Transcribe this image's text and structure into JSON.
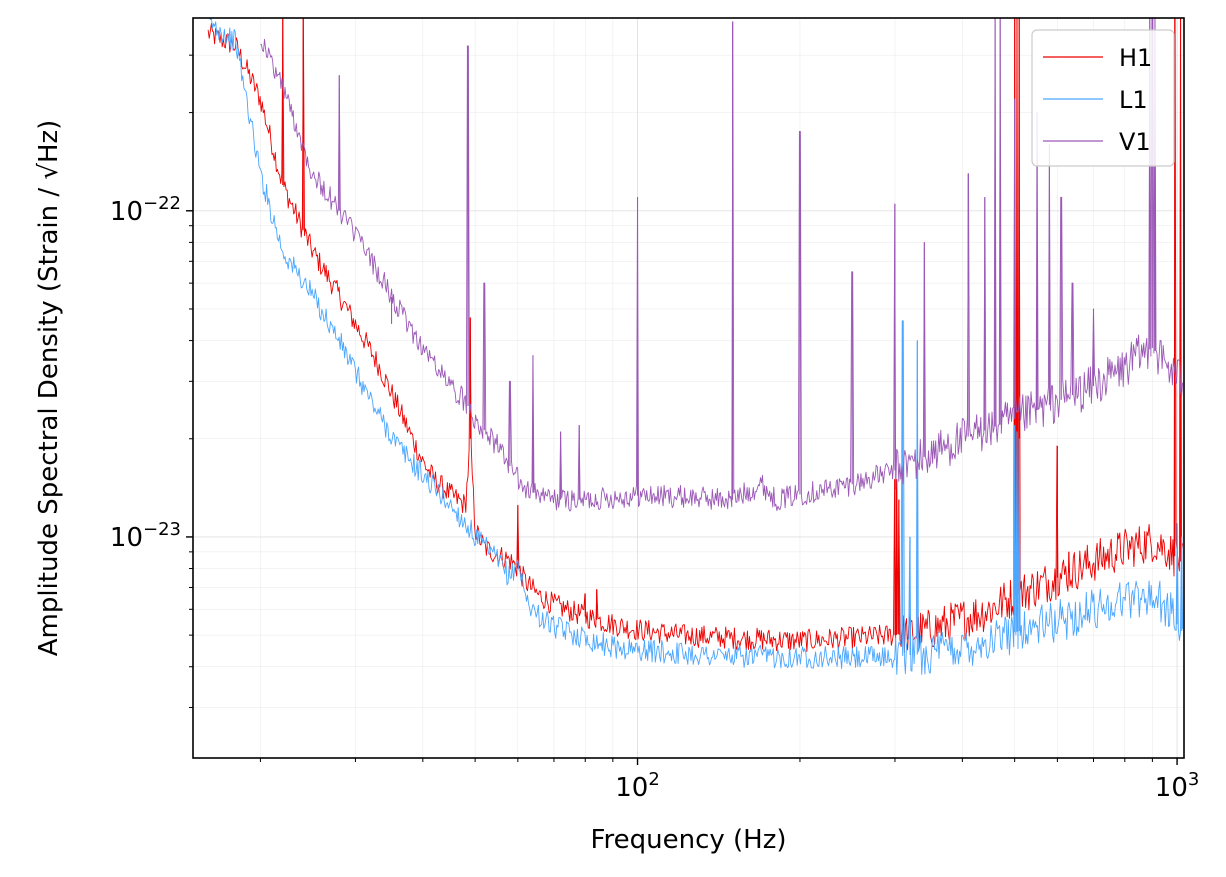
{
  "chart_data": {
    "type": "line",
    "xscale": "log",
    "yscale": "log",
    "xlabel": "Frequency (Hz)",
    "ylabel": "Amplitude Spectral Density (Strain / √Hz)",
    "xlim": [
      15,
      1030
    ],
    "ylim": [
      2.1e-24,
      3.9e-22
    ],
    "grid": true,
    "legend_position": "top-right",
    "x_ticks": [
      {
        "value": 100,
        "base": "10",
        "exp": "2"
      },
      {
        "value": 1000,
        "base": "10",
        "exp": "3"
      }
    ],
    "y_ticks": [
      {
        "value": 1e-23,
        "base": "10",
        "exp": "−23"
      },
      {
        "value": 1e-22,
        "base": "10",
        "exp": "−22"
      }
    ],
    "colors": {
      "H1": "#ee0000",
      "L1": "#4ba6ff",
      "V1": "#9b59b6"
    },
    "series": [
      {
        "name": "H1",
        "color": "#ee0000",
        "x": [
          16,
          18,
          20,
          22,
          25,
          28,
          30,
          33,
          36,
          40,
          42,
          45,
          48,
          49,
          50,
          52,
          55,
          58,
          60,
          62,
          65,
          70,
          80,
          90,
          100,
          120,
          150,
          200,
          250,
          300,
          350,
          400,
          450,
          500,
          600,
          700,
          800,
          900,
          950,
          1000,
          1024
        ],
        "y": [
          3.5e-22,
          3.2e-22,
          2.2e-22,
          1.2e-22,
          7.5e-23,
          5.5e-23,
          4.5e-23,
          3.4e-23,
          2.5e-23,
          1.7e-23,
          1.5e-23,
          1.35e-23,
          1.25e-23,
          2e-23,
          1.05e-23,
          9.3e-24,
          8.8e-24,
          8.5e-24,
          8e-24,
          7.3e-24,
          6.7e-24,
          6.2e-24,
          5.7e-24,
          5.4e-24,
          5.2e-24,
          5e-24,
          4.9e-24,
          4.8e-24,
          4.9e-24,
          5e-24,
          5.2e-24,
          5.6e-24,
          6e-24,
          6.6e-24,
          7.5e-24,
          8.4e-24,
          9.2e-24,
          9.7e-24,
          9.3e-24,
          8.6e-24,
          8.3e-24
        ],
        "lines": [
          {
            "x": 22,
            "y": 3.9e-22
          },
          {
            "x": 24,
            "y": 3.9e-22
          },
          {
            "x": 49,
            "y": 4.7e-23
          },
          {
            "x": 60,
            "y": 1.25e-23
          },
          {
            "x": 80,
            "y": 6.7e-24
          },
          {
            "x": 84,
            "y": 6.9e-24
          },
          {
            "x": 300,
            "y": 1.5e-23
          },
          {
            "x": 302,
            "y": 1.5e-23
          },
          {
            "x": 305,
            "y": 1.3e-23
          },
          {
            "x": 500,
            "y": 3.9e-22
          },
          {
            "x": 505,
            "y": 3.9e-22
          },
          {
            "x": 510,
            "y": 3.9e-22
          },
          {
            "x": 600,
            "y": 1.9e-23
          },
          {
            "x": 630,
            "y": 9e-24
          },
          {
            "x": 990,
            "y": 3.9e-22
          },
          {
            "x": 1015,
            "y": 3.9e-22
          }
        ]
      },
      {
        "name": "L1",
        "color": "#4ba6ff",
        "x": [
          16,
          18,
          20,
          22,
          25,
          28,
          30,
          33,
          36,
          40,
          45,
          48,
          50,
          55,
          58,
          60,
          62,
          65,
          70,
          80,
          90,
          100,
          120,
          150,
          200,
          250,
          300,
          350,
          400,
          450,
          500,
          600,
          700,
          800,
          900,
          950,
          1000,
          1024
        ],
        "y": [
          3.8e-22,
          3.3e-22,
          1.3e-22,
          7.5e-23,
          5.5e-23,
          4e-23,
          3.2e-23,
          2.4e-23,
          1.9e-23,
          1.55e-23,
          1.25e-23,
          1.1e-23,
          1e-23,
          8.5e-24,
          7.5e-24,
          8.5e-24,
          6.5e-24,
          5.8e-24,
          5.3e-24,
          4.9e-24,
          4.6e-24,
          4.5e-24,
          4.4e-24,
          4.3e-24,
          4.3e-24,
          4.25e-24,
          4.3e-24,
          4.4e-24,
          4.6e-24,
          4.8e-24,
          5.1e-24,
          5.5e-24,
          6e-24,
          6.5e-24,
          6.6e-24,
          6.2e-24,
          5.4e-24,
          5.1e-24
        ],
        "lines": [
          {
            "x": 310,
            "y": 4.6e-23
          },
          {
            "x": 320,
            "y": 1e-23
          },
          {
            "x": 330,
            "y": 4e-23
          },
          {
            "x": 500,
            "y": 2.2e-23
          },
          {
            "x": 505,
            "y": 2.1e-23
          },
          {
            "x": 510,
            "y": 2e-23
          },
          {
            "x": 1000,
            "y": 1.1e-23
          },
          {
            "x": 1020,
            "y": 1e-23
          }
        ]
      },
      {
        "name": "V1",
        "color": "#9b59b6",
        "x": [
          20,
          22,
          25,
          28,
          30,
          33,
          36,
          40,
          45,
          48,
          50,
          55,
          58,
          60,
          62,
          65,
          70,
          80,
          90,
          100,
          120,
          150,
          170,
          180,
          200,
          250,
          300,
          350,
          400,
          450,
          500,
          550,
          600,
          700,
          800,
          850,
          900,
          950,
          1000,
          1024
        ],
        "y": [
          3.4e-22,
          2.4e-22,
          1.3e-22,
          1e-22,
          8.5e-23,
          6.5e-23,
          5e-23,
          3.8e-23,
          2.9e-23,
          2.6e-23,
          2.3e-23,
          1.9e-23,
          1.65e-23,
          1.5e-23,
          1.4e-23,
          1.35e-23,
          1.3e-23,
          1.3e-23,
          1.32e-23,
          1.34e-23,
          1.33e-23,
          1.3e-23,
          1.45e-23,
          1.3e-23,
          1.35e-23,
          1.45e-23,
          1.6e-23,
          1.8e-23,
          2e-23,
          2.15e-23,
          2.3e-23,
          2.45e-23,
          2.6e-23,
          2.9e-23,
          3.3e-23,
          3.6e-23,
          3.8e-23,
          3.4e-23,
          3.1e-23,
          3e-23
        ],
        "lines": [
          {
            "x": 28,
            "y": 2.6e-22
          },
          {
            "x": 35,
            "y": 4.5e-23
          },
          {
            "x": 48.5,
            "y": 3.2e-22
          },
          {
            "x": 52,
            "y": 6e-23
          },
          {
            "x": 58,
            "y": 3e-23
          },
          {
            "x": 64,
            "y": 3.6e-23
          },
          {
            "x": 72,
            "y": 2.1e-23
          },
          {
            "x": 78,
            "y": 2.2e-23
          },
          {
            "x": 100,
            "y": 1.1e-22
          },
          {
            "x": 150,
            "y": 3.8e-22
          },
          {
            "x": 200,
            "y": 1.75e-22
          },
          {
            "x": 250,
            "y": 6.5e-23
          },
          {
            "x": 300,
            "y": 1.05e-22
          },
          {
            "x": 340,
            "y": 8e-23
          },
          {
            "x": 410,
            "y": 1.3e-22
          },
          {
            "x": 440,
            "y": 1.1e-22
          },
          {
            "x": 460,
            "y": 3.9e-22
          },
          {
            "x": 470,
            "y": 3.9e-22
          },
          {
            "x": 500,
            "y": 2.2e-22
          },
          {
            "x": 550,
            "y": 2e-22
          },
          {
            "x": 580,
            "y": 1.6e-22
          },
          {
            "x": 610,
            "y": 1.1e-22
          },
          {
            "x": 640,
            "y": 6e-23
          },
          {
            "x": 700,
            "y": 5e-23
          },
          {
            "x": 890,
            "y": 3.9e-22
          },
          {
            "x": 900,
            "y": 3.9e-22
          },
          {
            "x": 910,
            "y": 3.9e-22
          }
        ]
      }
    ]
  }
}
